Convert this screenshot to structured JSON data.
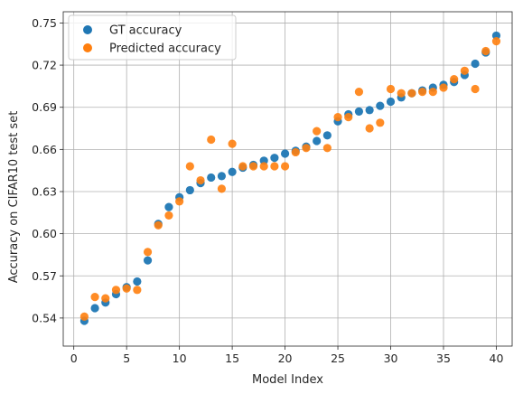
{
  "chart_data": {
    "type": "scatter",
    "title": "",
    "xlabel": "Model Index",
    "ylabel": "Accuracy on CIFAR10 test set",
    "xlim": [
      -1,
      41.5
    ],
    "ylim": [
      0.52,
      0.758
    ],
    "xticks": [
      0,
      5,
      10,
      15,
      20,
      25,
      30,
      35,
      40
    ],
    "yticks": [
      0.54,
      0.57,
      0.6,
      0.63,
      0.66,
      0.69,
      0.72,
      0.75
    ],
    "ytick_labels": [
      "0.54",
      "0.57",
      "0.60",
      "0.63",
      "0.66",
      "0.69",
      "0.72",
      "0.75"
    ],
    "grid": true,
    "legend_position": "top-left",
    "x": [
      1,
      2,
      3,
      4,
      5,
      6,
      7,
      8,
      9,
      10,
      11,
      12,
      13,
      14,
      15,
      16,
      17,
      18,
      19,
      20,
      21,
      22,
      23,
      24,
      25,
      26,
      27,
      28,
      29,
      30,
      31,
      32,
      33,
      34,
      35,
      36,
      37,
      38,
      39,
      40
    ],
    "series": [
      {
        "name": "GT accuracy",
        "color": "#1f77b4",
        "values": [
          0.538,
          0.547,
          0.551,
          0.557,
          0.562,
          0.566,
          0.581,
          0.607,
          0.619,
          0.626,
          0.631,
          0.636,
          0.64,
          0.641,
          0.644,
          0.647,
          0.649,
          0.652,
          0.654,
          0.657,
          0.659,
          0.662,
          0.666,
          0.67,
          0.68,
          0.685,
          0.687,
          0.688,
          0.691,
          0.694,
          0.697,
          0.7,
          0.702,
          0.704,
          0.706,
          0.708,
          0.713,
          0.721,
          0.729,
          0.741
        ]
      },
      {
        "name": "Predicted accuracy",
        "color": "#ff7f0e",
        "values": [
          0.541,
          0.555,
          0.554,
          0.56,
          0.561,
          0.56,
          0.587,
          0.606,
          0.613,
          0.623,
          0.648,
          0.638,
          0.667,
          0.632,
          0.664,
          0.648,
          0.648,
          0.648,
          0.648,
          0.648,
          0.658,
          0.661,
          0.673,
          0.661,
          0.683,
          0.683,
          0.701,
          0.675,
          0.679,
          0.703,
          0.7,
          0.7,
          0.701,
          0.701,
          0.704,
          0.71,
          0.716,
          0.703,
          0.73,
          0.737
        ]
      }
    ]
  }
}
